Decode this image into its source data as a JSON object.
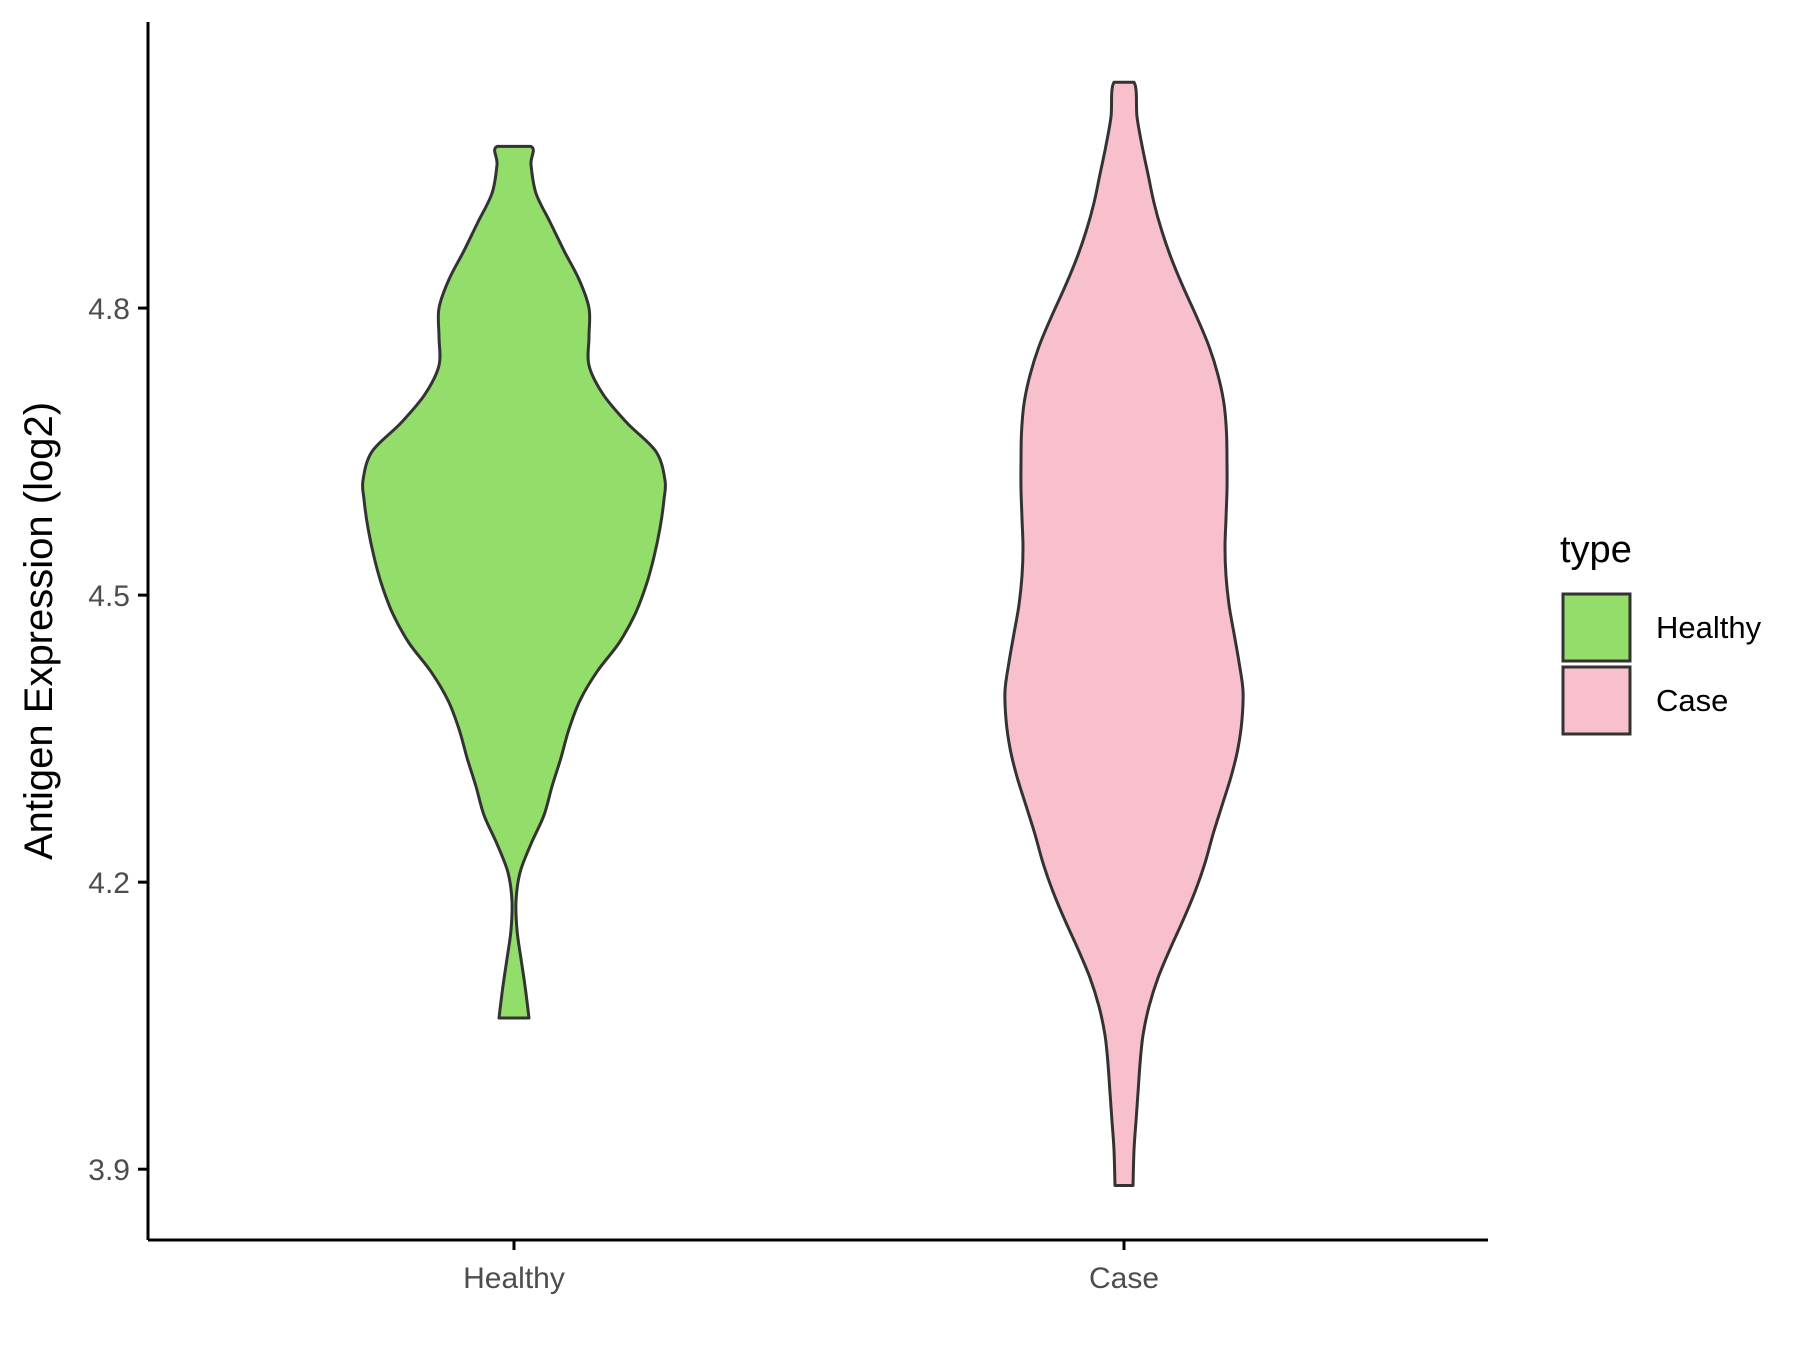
{
  "chart_data": {
    "type": "violin",
    "title": "",
    "xlabel": "",
    "ylabel": "Antigen Expression (log2)",
    "categories": [
      "Healthy",
      "Case"
    ],
    "y_ticks": [
      3.9,
      4.2,
      4.5,
      4.8
    ],
    "y_tick_labels": [
      "3.9",
      "4.2",
      "4.5",
      "4.8"
    ],
    "ylim": [
      3.826,
      5.099
    ],
    "grid": false,
    "legend": {
      "title": "type",
      "position": "right",
      "entries": [
        {
          "label": "Healthy",
          "color": "#93dd6b"
        },
        {
          "label": "Case",
          "color": "#f7c0cc"
        }
      ]
    },
    "series": [
      {
        "name": "Healthy",
        "color": "#93dd6b",
        "ymin": 4.058,
        "ymax": 4.969,
        "profile": [
          [
            4.058,
            0.0461
          ],
          [
            4.09,
            0.0346
          ],
          [
            4.12,
            0.0215
          ],
          [
            4.15,
            0.0092
          ],
          [
            4.18,
            0.0062
          ],
          [
            4.21,
            0.0185
          ],
          [
            4.24,
            0.0523
          ],
          [
            4.27,
            0.0923
          ],
          [
            4.3,
            0.1169
          ],
          [
            4.33,
            0.1446
          ],
          [
            4.36,
            0.1692
          ],
          [
            4.39,
            0.2031
          ],
          [
            4.42,
            0.2554
          ],
          [
            4.45,
            0.3231
          ],
          [
            4.48,
            0.3723
          ],
          [
            4.51,
            0.4062
          ],
          [
            4.54,
            0.4308
          ],
          [
            4.57,
            0.4492
          ],
          [
            4.6,
            0.4615
          ],
          [
            4.62,
            0.4646
          ],
          [
            4.65,
            0.4369
          ],
          [
            4.68,
            0.3477
          ],
          [
            4.71,
            0.2738
          ],
          [
            4.74,
            0.2308
          ],
          [
            4.77,
            0.2308
          ],
          [
            4.8,
            0.2308
          ],
          [
            4.83,
            0.2
          ],
          [
            4.86,
            0.1538
          ],
          [
            4.89,
            0.1108
          ],
          [
            4.92,
            0.0677
          ],
          [
            4.95,
            0.0523
          ],
          [
            4.969,
            0.0523
          ]
        ]
      },
      {
        "name": "Case",
        "color": "#f7c0cc",
        "ymin": 3.883,
        "ymax": 5.036,
        "profile": [
          [
            3.883,
            0.0277
          ],
          [
            3.92,
            0.0308
          ],
          [
            3.95,
            0.0369
          ],
          [
            3.98,
            0.0431
          ],
          [
            4.01,
            0.0492
          ],
          [
            4.04,
            0.0585
          ],
          [
            4.07,
            0.0769
          ],
          [
            4.1,
            0.1046
          ],
          [
            4.13,
            0.1415
          ],
          [
            4.16,
            0.1815
          ],
          [
            4.19,
            0.2185
          ],
          [
            4.22,
            0.2492
          ],
          [
            4.25,
            0.2738
          ],
          [
            4.28,
            0.3015
          ],
          [
            4.31,
            0.3292
          ],
          [
            4.34,
            0.3508
          ],
          [
            4.37,
            0.3631
          ],
          [
            4.4,
            0.3662
          ],
          [
            4.43,
            0.3538
          ],
          [
            4.46,
            0.3385
          ],
          [
            4.49,
            0.3231
          ],
          [
            4.52,
            0.3138
          ],
          [
            4.55,
            0.3108
          ],
          [
            4.58,
            0.3138
          ],
          [
            4.61,
            0.3169
          ],
          [
            4.64,
            0.3169
          ],
          [
            4.67,
            0.3154
          ],
          [
            4.7,
            0.3077
          ],
          [
            4.73,
            0.2892
          ],
          [
            4.76,
            0.2615
          ],
          [
            4.79,
            0.2246
          ],
          [
            4.82,
            0.1846
          ],
          [
            4.85,
            0.1477
          ],
          [
            4.88,
            0.1169
          ],
          [
            4.91,
            0.0923
          ],
          [
            4.94,
            0.0738
          ],
          [
            4.97,
            0.0554
          ],
          [
            5.0,
            0.04
          ],
          [
            5.036,
            0.0308
          ]
        ]
      }
    ]
  }
}
